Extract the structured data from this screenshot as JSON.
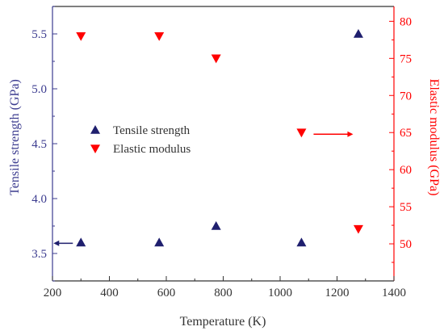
{
  "chart_data": {
    "type": "scatter",
    "title": "",
    "xlabel": "Temperature (K)",
    "ylabel": "Tensile strength (GPa)",
    "y2label": "Elastic modulus (GPa)",
    "xlim": [
      200,
      1400
    ],
    "ylim": [
      3.25,
      5.75
    ],
    "y2lim": [
      45,
      82
    ],
    "x_ticks": [
      200,
      400,
      600,
      800,
      1000,
      1200,
      1400
    ],
    "y_ticks": [
      3.5,
      4.0,
      4.5,
      5.0,
      5.5
    ],
    "y2_ticks": [
      50,
      55,
      60,
      65,
      70,
      75,
      80
    ],
    "legend_position": "center-left",
    "grid": false,
    "series": [
      {
        "name": "Tensile strength",
        "axis": "left",
        "marker": "triangle-up",
        "color": "#1f1f6e",
        "x": [
          300,
          575,
          775,
          1075,
          1275
        ],
        "y": [
          3.6,
          3.6,
          3.75,
          3.6,
          5.5
        ]
      },
      {
        "name": "Elastic modulus",
        "axis": "right",
        "marker": "triangle-down",
        "color": "#ff0000",
        "x": [
          300,
          575,
          775,
          1075,
          1275
        ],
        "y": [
          78,
          78,
          75,
          65,
          52
        ]
      }
    ],
    "left_axis_color": "#3b3b8f",
    "right_axis_color": "#ff0000",
    "axis_color": "#333333"
  }
}
